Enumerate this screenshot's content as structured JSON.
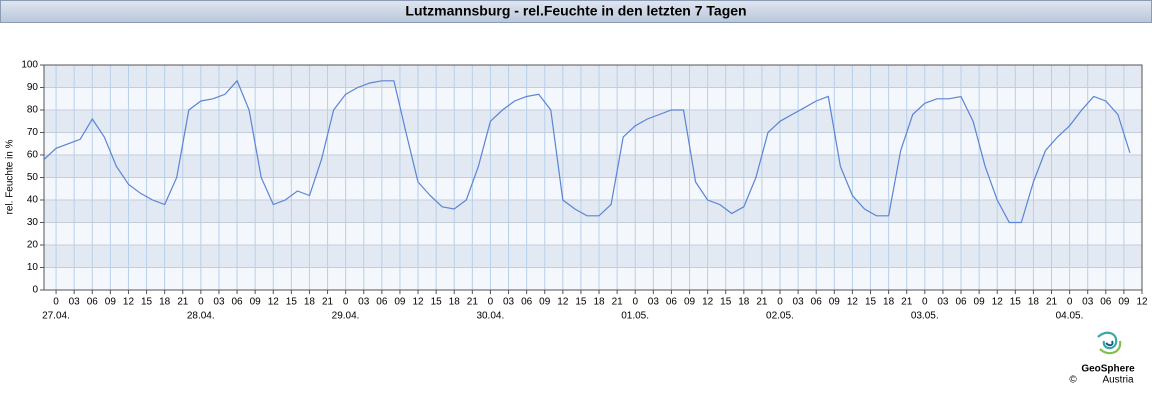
{
  "chart_data": {
    "type": "line",
    "title": "Lutzmannsburg - rel.Feuchte in den letzten 7 Tagen",
    "ylabel": "rel. Feuchte in %",
    "color": "#5b84d6",
    "grid": true,
    "x": [
      -2,
      0,
      2,
      4,
      6,
      8,
      10,
      12,
      14,
      16,
      18,
      20,
      22,
      24,
      26,
      28,
      30,
      32,
      34,
      36,
      38,
      40,
      42,
      44,
      46,
      48,
      50,
      52,
      54,
      56,
      58,
      60,
      62,
      64,
      66,
      68,
      70,
      72,
      74,
      76,
      78,
      80,
      82,
      84,
      86,
      88,
      90,
      92,
      94,
      96,
      98,
      100,
      102,
      104,
      106,
      108,
      110,
      112,
      114,
      116,
      118,
      120,
      122,
      124,
      126,
      128,
      130,
      132,
      134,
      136,
      138,
      140,
      142,
      144,
      146,
      148,
      150,
      152,
      154,
      156,
      158,
      160,
      162,
      164,
      166,
      168,
      170,
      172,
      174,
      176,
      178
    ],
    "values": [
      58,
      63,
      65,
      67,
      76,
      68,
      55,
      47,
      43,
      40,
      38,
      50,
      80,
      84,
      85,
      87,
      93,
      80,
      50,
      38,
      40,
      44,
      42,
      58,
      80,
      87,
      90,
      92,
      93,
      93,
      70,
      48,
      42,
      37,
      36,
      40,
      55,
      75,
      80,
      84,
      86,
      87,
      80,
      40,
      36,
      33,
      33,
      38,
      68,
      73,
      76,
      78,
      80,
      80,
      48,
      40,
      38,
      34,
      37,
      50,
      70,
      75,
      78,
      81,
      84,
      86,
      55,
      42,
      36,
      33,
      33,
      62,
      78,
      83,
      85,
      85,
      86,
      75,
      55,
      40,
      30,
      30,
      48,
      62,
      68,
      73,
      80,
      86,
      84,
      78,
      61
    ],
    "xlim": [
      -2,
      180
    ],
    "ylim": [
      0,
      100
    ],
    "yticks": [
      0,
      10,
      20,
      30,
      40,
      50,
      60,
      70,
      80,
      90,
      100
    ],
    "xticks": [
      0,
      {
        "value": 3,
        "label": "03"
      },
      {
        "value": 6,
        "label": "06"
      },
      {
        "value": 9,
        "label": "09"
      },
      {
        "value": 12,
        "label": "12"
      },
      {
        "value": 15,
        "label": "15"
      },
      {
        "value": 18,
        "label": "18"
      },
      {
        "value": 21,
        "label": "21"
      },
      {
        "value": 24,
        "label": "0"
      },
      {
        "value": 27,
        "label": "03"
      },
      {
        "value": 30,
        "label": "06"
      },
      {
        "value": 33,
        "label": "09"
      },
      {
        "value": 36,
        "label": "12"
      },
      {
        "value": 39,
        "label": "15"
      },
      {
        "value": 42,
        "label": "18"
      },
      {
        "value": 45,
        "label": "21"
      },
      {
        "value": 48,
        "label": "0"
      },
      {
        "value": 51,
        "label": "03"
      },
      {
        "value": 54,
        "label": "06"
      },
      {
        "value": 57,
        "label": "09"
      },
      {
        "value": 60,
        "label": "12"
      },
      {
        "value": 63,
        "label": "15"
      },
      {
        "value": 66,
        "label": "18"
      },
      {
        "value": 69,
        "label": "21"
      },
      {
        "value": 72,
        "label": "0"
      },
      {
        "value": 75,
        "label": "03"
      },
      {
        "value": 78,
        "label": "06"
      },
      {
        "value": 81,
        "label": "09"
      },
      {
        "value": 84,
        "label": "12"
      },
      {
        "value": 87,
        "label": "15"
      },
      {
        "value": 90,
        "label": "18"
      },
      {
        "value": 93,
        "label": "21"
      },
      {
        "value": 96,
        "label": "0"
      },
      {
        "value": 99,
        "label": "03"
      },
      {
        "value": 102,
        "label": "06"
      },
      {
        "value": 105,
        "label": "09"
      },
      {
        "value": 108,
        "label": "12"
      },
      {
        "value": 111,
        "label": "15"
      },
      {
        "value": 114,
        "label": "18"
      },
      {
        "value": 117,
        "label": "21"
      },
      {
        "value": 120,
        "label": "0"
      },
      {
        "value": 123,
        "label": "03"
      },
      {
        "value": 126,
        "label": "06"
      },
      {
        "value": 129,
        "label": "09"
      },
      {
        "value": 132,
        "label": "12"
      },
      {
        "value": 135,
        "label": "15"
      },
      {
        "value": 138,
        "label": "18"
      },
      {
        "value": 141,
        "label": "21"
      },
      {
        "value": 144,
        "label": "0"
      },
      {
        "value": 147,
        "label": "03"
      },
      {
        "value": 150,
        "label": "06"
      },
      {
        "value": 153,
        "label": "09"
      },
      {
        "value": 156,
        "label": "12"
      },
      {
        "value": 159,
        "label": "15"
      },
      {
        "value": 162,
        "label": "18"
      },
      {
        "value": 165,
        "label": "21"
      },
      {
        "value": 168,
        "label": "0"
      },
      {
        "value": 171,
        "label": "03"
      },
      {
        "value": 174,
        "label": "06"
      },
      {
        "value": 177,
        "label": "09"
      },
      {
        "value": 180,
        "label": "12"
      }
    ],
    "date_labels": [
      {
        "value": 0,
        "label": "27.04."
      },
      {
        "value": 24,
        "label": "28.04."
      },
      {
        "value": 48,
        "label": "29.04."
      },
      {
        "value": 72,
        "label": "30.04."
      },
      {
        "value": 96,
        "label": "01.05."
      },
      {
        "value": 120,
        "label": "02.05."
      },
      {
        "value": 144,
        "label": "03.05."
      },
      {
        "value": 168,
        "label": "04.05."
      }
    ]
  },
  "logo": {
    "name": "GeoSphere",
    "sub": "Austria",
    "copyright": "©"
  }
}
